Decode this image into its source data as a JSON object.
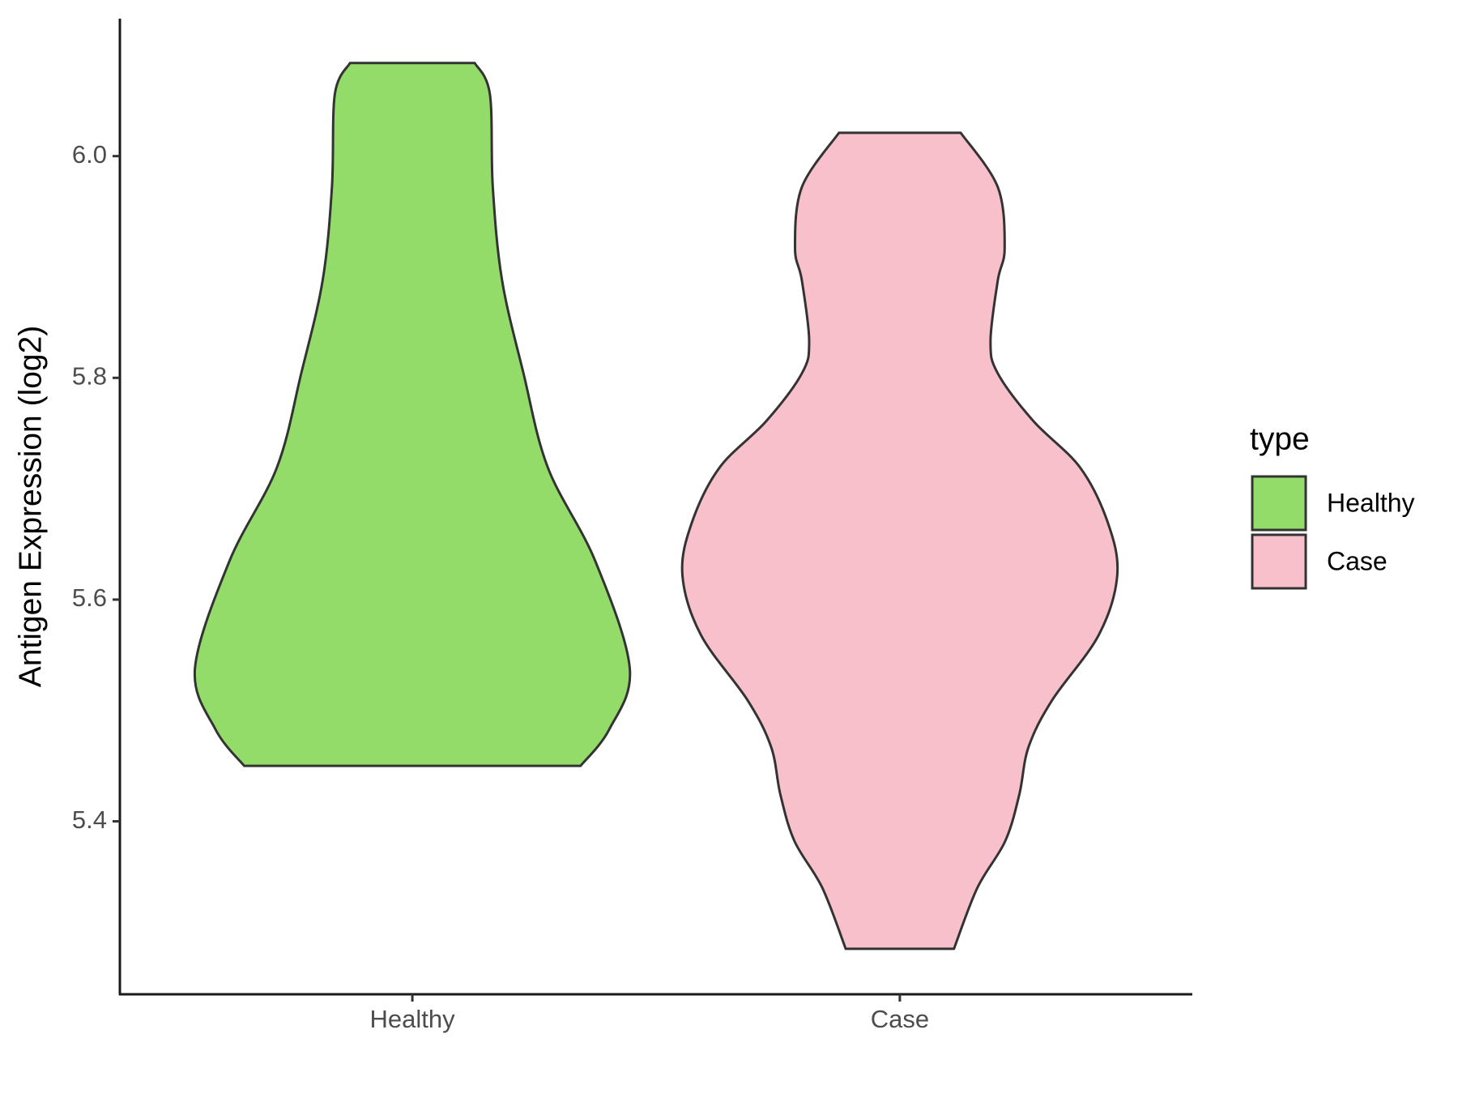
{
  "chart_data": {
    "type": "violin",
    "y_label": "Antigen Expression (log2)",
    "categories": [
      "Healthy",
      "Case"
    ],
    "legend_title": "type",
    "legend_position": "right",
    "ylim": [
      5.244,
      6.124
    ],
    "yticks": [
      {
        "value": 5.4,
        "label": "5.4"
      },
      {
        "value": 5.6,
        "label": "5.6"
      },
      {
        "value": 5.8,
        "label": "5.8"
      },
      {
        "value": 6.0,
        "label": "6.0"
      }
    ],
    "series": [
      {
        "name": "Healthy",
        "color": "#93dc6a",
        "y": [
          6.084,
          6.056,
          5.972,
          5.888,
          5.804,
          5.719,
          5.635,
          5.538,
          5.483,
          5.45
        ],
        "half_width": [
          0.128,
          0.159,
          0.165,
          0.184,
          0.228,
          0.278,
          0.375,
          0.446,
          0.404,
          0.345
        ]
      },
      {
        "name": "Case",
        "color": "#f7c0cb",
        "y": [
          6.021,
          5.972,
          5.917,
          5.888,
          5.833,
          5.804,
          5.761,
          5.719,
          5.669,
          5.622,
          5.568,
          5.509,
          5.467,
          5.424,
          5.382,
          5.34,
          5.285
        ],
        "half_width": [
          0.125,
          0.201,
          0.215,
          0.201,
          0.186,
          0.201,
          0.274,
          0.37,
          0.427,
          0.446,
          0.408,
          0.312,
          0.264,
          0.245,
          0.216,
          0.159,
          0.111
        ]
      }
    ]
  }
}
